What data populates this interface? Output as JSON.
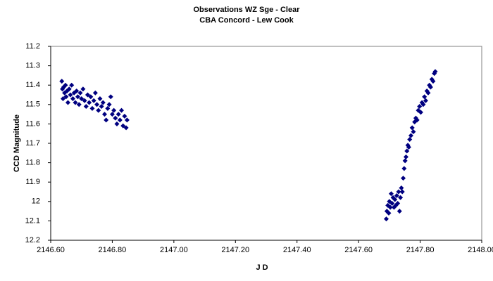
{
  "chart_data": {
    "type": "scatter",
    "title": "Observations WZ Sge - Clear",
    "subtitle": "CBA Concord - Lew Cook",
    "x_label": "J D",
    "y_label": "CCD Magnitude",
    "xlim": [
      2146.6,
      2148.0
    ],
    "xticks": [
      {
        "value": 2146.6,
        "label": "2146.60"
      },
      {
        "value": 2146.8,
        "label": "2146.80"
      },
      {
        "value": 2147.0,
        "label": "2147.00"
      },
      {
        "value": 2147.2,
        "label": "2147.20"
      },
      {
        "value": 2147.4,
        "label": "2147.40"
      },
      {
        "value": 2147.6,
        "label": "2147.60"
      },
      {
        "value": 2147.8,
        "label": "2147.80"
      },
      {
        "value": 2148.0,
        "label": "2148.00"
      }
    ],
    "ylim": [
      12.2,
      11.2
    ],
    "yticks": [
      11.2,
      11.3,
      11.4,
      11.5,
      11.6,
      11.7,
      11.8,
      11.9,
      12,
      12.1,
      12.2
    ],
    "grid": false,
    "series": [
      {
        "color": "#000080",
        "x": [
          2146.636,
          2146.638,
          2146.64,
          2146.642,
          2146.645,
          2146.648,
          2146.65,
          2146.653,
          2146.656,
          2146.66,
          2146.664,
          2146.668,
          2146.672,
          2146.676,
          2146.68,
          2146.684,
          2146.688,
          2146.692,
          2146.696,
          2146.7,
          2146.705,
          2146.71,
          2146.715,
          2146.72,
          2146.725,
          2146.73,
          2146.735,
          2146.74,
          2146.745,
          2146.75,
          2146.755,
          2146.76,
          2146.765,
          2146.77,
          2146.775,
          2146.78,
          2146.785,
          2146.79,
          2146.795,
          2146.8,
          2146.805,
          2146.81,
          2146.815,
          2146.82,
          2146.825,
          2146.83,
          2146.835,
          2146.84,
          2146.845,
          2146.848,
          2147.69,
          2147.692,
          2147.695,
          2147.698,
          2147.7,
          2147.703,
          2147.706,
          2147.709,
          2147.712,
          2147.715,
          2147.718,
          2147.721,
          2147.724,
          2147.727,
          2147.73,
          2147.733,
          2147.736,
          2147.739,
          2147.742,
          2147.745,
          2147.748,
          2147.751,
          2147.754,
          2147.757,
          2147.76,
          2147.763,
          2147.766,
          2147.77,
          2147.774,
          2147.778,
          2147.782,
          2147.786,
          2147.79,
          2147.794,
          2147.798,
          2147.802,
          2147.806,
          2147.81,
          2147.814,
          2147.818,
          2147.822,
          2147.826,
          2147.83,
          2147.834,
          2147.838,
          2147.842,
          2147.846,
          2147.849
        ],
        "values": [
          11.38,
          11.42,
          11.47,
          11.41,
          11.44,
          11.4,
          11.46,
          11.43,
          11.49,
          11.42,
          11.45,
          11.4,
          11.47,
          11.44,
          11.49,
          11.43,
          11.46,
          11.5,
          11.44,
          11.47,
          11.42,
          11.48,
          11.51,
          11.45,
          11.49,
          11.46,
          11.52,
          11.48,
          11.44,
          11.5,
          11.53,
          11.47,
          11.51,
          11.49,
          11.55,
          11.58,
          11.52,
          11.5,
          11.46,
          11.55,
          11.53,
          11.57,
          11.6,
          11.55,
          11.58,
          11.53,
          11.61,
          11.56,
          11.62,
          11.58,
          12.09,
          12.05,
          12.02,
          12.06,
          12.0,
          12.03,
          11.96,
          12.01,
          11.98,
          12.03,
          11.99,
          12.02,
          11.97,
          12.01,
          11.95,
          12.05,
          11.98,
          11.93,
          11.95,
          11.88,
          11.83,
          11.79,
          11.77,
          11.74,
          11.71,
          11.72,
          11.68,
          11.66,
          11.62,
          11.64,
          11.59,
          11.57,
          11.58,
          11.53,
          11.51,
          11.54,
          11.49,
          11.5,
          11.46,
          11.48,
          11.43,
          11.44,
          11.4,
          11.41,
          11.37,
          11.38,
          11.34,
          11.33
        ]
      }
    ]
  }
}
